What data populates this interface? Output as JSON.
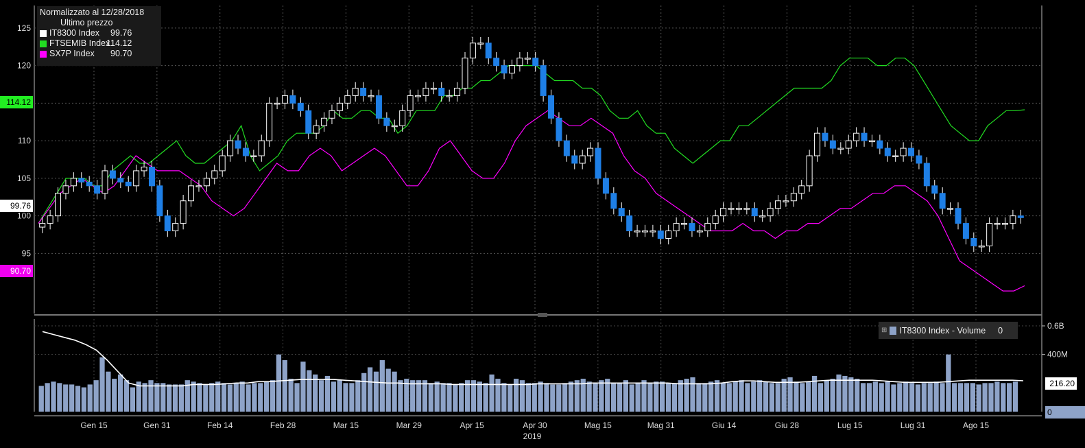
{
  "legend": {
    "title": "Normalizzato al 12/28/2018",
    "subtitle": "Ultimo prezzo",
    "entries": [
      {
        "name": "IT8300 Index",
        "value": "99.76",
        "color": "#ffffff"
      },
      {
        "name": "FTSEMIB Index",
        "value": "114.12",
        "color": "#22dd22"
      },
      {
        "name": "SX7P Index",
        "value": "90.70",
        "color": "#ff00ff"
      }
    ]
  },
  "price_tags": {
    "ftsemib": "114.12",
    "it8300": "99.76",
    "sx7p": "90.70"
  },
  "volume_legend": {
    "expand_icon": "⊞",
    "name": "IT8300 Index - Volume",
    "value": "0"
  },
  "volume_tags": {
    "avg": "216.20",
    "last": "0"
  },
  "chart_data": [
    {
      "type": "line",
      "title": "Normalizzato al 12/28/2018",
      "subtitle": "Ultimo prezzo",
      "ylim": [
        87,
        128
      ],
      "yticks": [
        95,
        100,
        105,
        110,
        115,
        120,
        125
      ],
      "x_tick_labels": [
        "Gen 15",
        "Gen 31",
        "Feb 14",
        "Feb 28",
        "Mar 15",
        "Mar 29",
        "Apr 15",
        "Apr 30",
        "Mag 15",
        "Mag 31",
        "Giu 14",
        "Giu 28",
        "Lug 15",
        "Lug 31",
        "Ago 15"
      ],
      "x_year_label": "2019",
      "grid": true,
      "legend_position": "top-left",
      "series": [
        {
          "name": "IT8300 Index",
          "style": "candlestick",
          "color_up": "#ffffff",
          "color_down": "#1e7fe6",
          "values": [
            99,
            100,
            103,
            104,
            105,
            104.5,
            104,
            103,
            106,
            105,
            104.5,
            104,
            106,
            106.5,
            104,
            100,
            98,
            99,
            102,
            104,
            104,
            105,
            106,
            108,
            110,
            109,
            108,
            108,
            110,
            115,
            115,
            116,
            115,
            114,
            111,
            112,
            113,
            114,
            115,
            116,
            117,
            116,
            116,
            113,
            112,
            112,
            114,
            116,
            116,
            117,
            117,
            116,
            116,
            117,
            121,
            123,
            123,
            121,
            120,
            119,
            120,
            121,
            121,
            120,
            116,
            113,
            110,
            108,
            107,
            108,
            109,
            105,
            103,
            101,
            100,
            98,
            98,
            98,
            98,
            97,
            98,
            99,
            99,
            98,
            98,
            99,
            100,
            101,
            101,
            101,
            101,
            100,
            100,
            101,
            102,
            102,
            103,
            104,
            108,
            111,
            110,
            109,
            109,
            110,
            111,
            110,
            110,
            109,
            108,
            108,
            109,
            108,
            107,
            104,
            103,
            101,
            101,
            99,
            97,
            96,
            96,
            99,
            99,
            99,
            100,
            99.76
          ]
        },
        {
          "name": "FTSEMIB Index",
          "color": "#22dd22",
          "values": [
            99,
            101,
            103,
            105,
            105,
            105,
            104,
            104,
            106,
            107,
            108,
            107,
            107,
            108,
            109,
            110,
            108,
            107,
            107,
            108,
            109,
            110,
            112,
            108,
            106,
            107,
            108,
            110,
            111,
            111,
            111,
            112,
            114,
            113,
            113,
            114,
            114,
            113,
            113,
            111,
            112,
            114,
            114,
            114,
            116,
            116,
            117,
            117,
            118,
            118,
            119,
            120,
            120,
            120,
            120,
            119,
            118,
            118,
            118,
            117,
            117,
            116,
            114,
            113,
            113,
            114,
            112,
            111,
            111,
            109,
            108,
            107,
            108,
            109,
            110,
            110,
            112,
            112,
            113,
            114,
            115,
            116,
            117,
            117,
            117,
            117,
            118,
            120,
            121,
            121,
            121,
            120,
            120,
            121,
            121,
            120,
            118,
            116,
            114,
            112,
            111,
            110,
            110,
            112,
            113,
            114,
            114,
            114.12
          ]
        },
        {
          "name": "SX7P Index",
          "color": "#ff00ff",
          "values": [
            99,
            101,
            103,
            104,
            105,
            104,
            103,
            104,
            106,
            108,
            107,
            106,
            106,
            106,
            105,
            104,
            102,
            101,
            100,
            101,
            103,
            105,
            107,
            106,
            106,
            108,
            109,
            108,
            106,
            107,
            108,
            109,
            108,
            106,
            104,
            104,
            106,
            109,
            110,
            108,
            106,
            105,
            105,
            107,
            110,
            112,
            113,
            114,
            113,
            112,
            112,
            113,
            112,
            111,
            108,
            106,
            105,
            103,
            102,
            101,
            100,
            99,
            98,
            98,
            98,
            99,
            98,
            98,
            97,
            98,
            98,
            99,
            99,
            100,
            101,
            101,
            102,
            103,
            103,
            104,
            104,
            103,
            102,
            100,
            97,
            94,
            93,
            92,
            91,
            90,
            90,
            90.7
          ]
        }
      ]
    },
    {
      "type": "bar",
      "title": "IT8300 Index - Volume",
      "ylim": [
        0,
        0.6
      ],
      "yticks_labels": [
        "0.6B",
        "400M"
      ],
      "series": [
        {
          "name": "IT8300 Index - Volume",
          "color": "#8ea3c8",
          "values_m": [
            180,
            200,
            210,
            200,
            190,
            190,
            180,
            170,
            190,
            220,
            380,
            280,
            230,
            260,
            220,
            170,
            210,
            200,
            220,
            200,
            200,
            190,
            190,
            190,
            220,
            210,
            200,
            190,
            200,
            210,
            200,
            190,
            200,
            210,
            190,
            200,
            200,
            210,
            220,
            400,
            360,
            230,
            200,
            350,
            290,
            260,
            220,
            250,
            210,
            220,
            200,
            200,
            220,
            270,
            310,
            280,
            360,
            300,
            280,
            220,
            230,
            220,
            220,
            220,
            200,
            210,
            200,
            200,
            190,
            200,
            220,
            220,
            210,
            200,
            260,
            230,
            200,
            190,
            230,
            220,
            200,
            200,
            210,
            200,
            190,
            190,
            200,
            210,
            220,
            230,
            210,
            200,
            220,
            230,
            200,
            200,
            220,
            190,
            200,
            220,
            200,
            210,
            210,
            200,
            200,
            220,
            230,
            240,
            200,
            200,
            210,
            220,
            200,
            200,
            210,
            220,
            200,
            210,
            220,
            210,
            200,
            200,
            230,
            240,
            210,
            200,
            210,
            250,
            200,
            220,
            230,
            260,
            250,
            240,
            230,
            200,
            200,
            210,
            200,
            210,
            190,
            200,
            210,
            200,
            190,
            200,
            200,
            210,
            200,
            400,
            200,
            200,
            200,
            200,
            190,
            200,
            200,
            210,
            200,
            200,
            210,
            0
          ]
        },
        {
          "name": "Average",
          "color": "#ffffff",
          "values_m": [
            560,
            540,
            520,
            500,
            470,
            430,
            360,
            280,
            200,
            180,
            180,
            180,
            180,
            180,
            190,
            190,
            190,
            195,
            200,
            200,
            210,
            210,
            215,
            220,
            225,
            225,
            225,
            225,
            220,
            215,
            210,
            205,
            200,
            200,
            195,
            195,
            195,
            195,
            190,
            190,
            190,
            190,
            190,
            190,
            190,
            190,
            195,
            195,
            195,
            195,
            195,
            200,
            200,
            200,
            200,
            200,
            200,
            200,
            200,
            195,
            195,
            195,
            195,
            200,
            210,
            215,
            215,
            210,
            205,
            205,
            205,
            210,
            215,
            220,
            220,
            220,
            220,
            220,
            215,
            210,
            205,
            205,
            205,
            205,
            210,
            215,
            220,
            220,
            220,
            220,
            220,
            216.2
          ]
        }
      ]
    }
  ]
}
